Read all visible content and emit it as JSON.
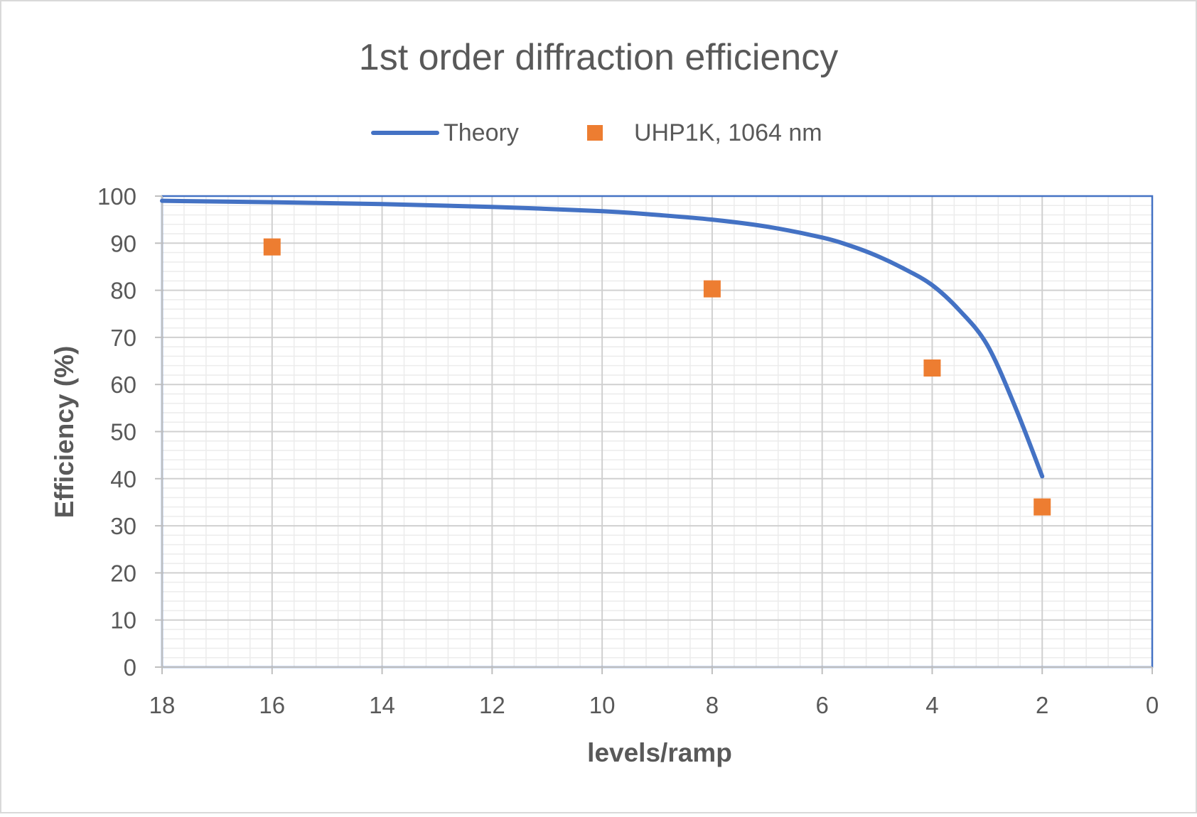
{
  "chart_data": {
    "type": "scatter",
    "title": "1st order diffraction efficiency",
    "xlabel": "levels/ramp",
    "ylabel": "Efficiency (%)",
    "xlim": [
      18,
      0
    ],
    "ylim": [
      0,
      100
    ],
    "x_reversed": true,
    "xticks": [
      18,
      16,
      14,
      12,
      10,
      8,
      6,
      4,
      2,
      0
    ],
    "yticks": [
      0,
      10,
      20,
      30,
      40,
      50,
      60,
      70,
      80,
      90,
      100
    ],
    "major_grid": true,
    "minor_grid": true,
    "legend_position": "top",
    "series": [
      {
        "name": "Theory",
        "kind": "line",
        "color": "#4472C4",
        "x": [
          18,
          16,
          14,
          12,
          10,
          9,
          8,
          7,
          6,
          5.5,
          5,
          4.5,
          4,
          3.5,
          3,
          2.5,
          2
        ],
        "y": [
          99.0,
          98.7,
          98.3,
          97.7,
          96.8,
          96.0,
          95.0,
          93.5,
          91.2,
          89.5,
          87.3,
          84.5,
          81.1,
          75.7,
          68.4,
          55.5,
          40.5
        ]
      },
      {
        "name": "UHP1K, 1064 nm",
        "kind": "marker",
        "color": "#ED7D31",
        "x": [
          16,
          8,
          4,
          2
        ],
        "y": [
          89.2,
          80.3,
          63.5,
          34.0
        ]
      }
    ]
  }
}
